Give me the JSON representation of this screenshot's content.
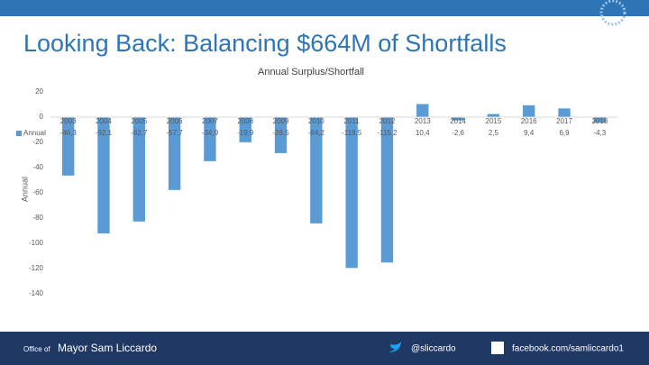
{
  "slide_title": "Looking Back: Balancing $664M of Shortfalls",
  "chart_data": {
    "type": "bar",
    "title": "Annual Surplus/Shortfall",
    "y_label": "Annual",
    "categories": [
      "2003",
      "2004",
      "2005",
      "2006",
      "2007",
      "2008",
      "2009",
      "2010",
      "2011",
      "2012",
      "2013",
      "2014",
      "2015",
      "2016",
      "2017",
      "2018"
    ],
    "series": [
      {
        "name": "Annual",
        "color": "#5b9bd5",
        "values": [
          -46.3,
          -92.1,
          -82.7,
          -57.7,
          -34.9,
          -19.9,
          -28.5,
          -84.2,
          -119.5,
          -115.2,
          10.4,
          -2.6,
          2.5,
          9.4,
          6.9,
          -4.3
        ],
        "value_labels": [
          "-46,3",
          "-92,1",
          "-82,7",
          "-57,7",
          "-34,9",
          "-19,9",
          "-28,5",
          "-84,2",
          "-119,5",
          "-115,2",
          "10,4",
          "-2,6",
          "2,5",
          "9,4",
          "6,9",
          "-4,3"
        ]
      }
    ],
    "ylim": [
      -140,
      20
    ],
    "yticks": [
      -140,
      -120,
      -100,
      -80,
      -60,
      -40,
      -20,
      0,
      20
    ]
  },
  "footer": {
    "office_prefix": "Office of",
    "office_name": "Mayor Sam Liccardo",
    "twitter": "@sliccardo",
    "facebook": "facebook.com/samliccardo1"
  }
}
